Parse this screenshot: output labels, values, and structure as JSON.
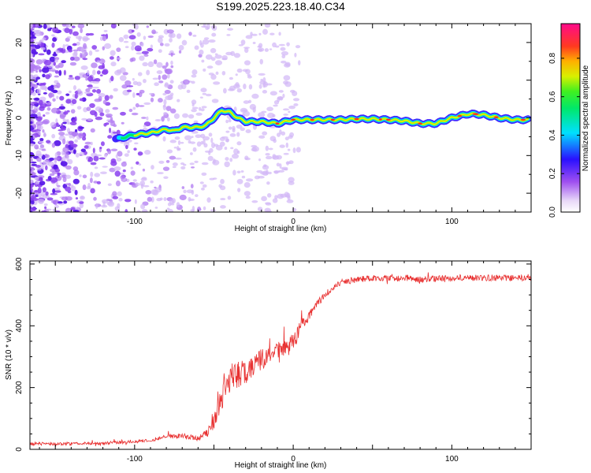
{
  "chart_data": [
    {
      "type": "heatmap",
      "title": "S199.2025.223.18.40.C34",
      "xlabel": "Height of straight line (km)",
      "ylabel": "Frequency (Hz)",
      "xlim": [
        -166,
        150
      ],
      "ylim": [
        -25,
        25
      ],
      "xticks": [
        -100,
        0,
        100
      ],
      "yticks": [
        -20,
        -10,
        0,
        10,
        20
      ],
      "ridge": {
        "x": [
          -110,
          -100,
          -90,
          -80,
          -75,
          -70,
          -60,
          -55,
          -50,
          -45,
          -40,
          -35,
          -30,
          -20,
          -10,
          0,
          10,
          20,
          30,
          40,
          50,
          60,
          70,
          80,
          90,
          100,
          105,
          110,
          115,
          120,
          130,
          140,
          148
        ],
        "freq": [
          -5.5,
          -4.5,
          -4,
          -3,
          -3.5,
          -2.5,
          -2.5,
          -2,
          0,
          2,
          1.5,
          0,
          -1,
          -1,
          -1.5,
          -0.5,
          -0.5,
          -0.5,
          -0.5,
          -0.3,
          -0.3,
          -0.5,
          -0.8,
          -1.5,
          -1.5,
          0,
          0.5,
          1,
          1,
          0.8,
          0,
          -0.5,
          -0.5
        ]
      },
      "colorbar": {
        "label": "Normalized spectral amplitude",
        "ticks": [
          "0.0",
          "0.2",
          "0.4",
          "0.6",
          "0.8"
        ],
        "range": [
          0,
          0.98
        ]
      }
    },
    {
      "type": "line",
      "xlabel": "Height of straight line (km)",
      "ylabel": "SNR (10 * v/v)",
      "xlim": [
        -166,
        150
      ],
      "ylim": [
        0,
        610
      ],
      "xticks": [
        -100,
        0,
        100
      ],
      "yticks": [
        0,
        200,
        400,
        600
      ],
      "color": "#e83030",
      "series": [
        {
          "name": "SNR",
          "x": [
            -166,
            -140,
            -120,
            -100,
            -90,
            -80,
            -70,
            -60,
            -55,
            -50,
            -45,
            -40,
            -35,
            -30,
            -25,
            -20,
            -15,
            -10,
            -5,
            0,
            5,
            10,
            15,
            20,
            25,
            30,
            40,
            50,
            60,
            80,
            100,
            120,
            150
          ],
          "y": [
            18,
            18,
            20,
            25,
            30,
            40,
            45,
            35,
            50,
            90,
            170,
            230,
            240,
            250,
            270,
            290,
            300,
            320,
            330,
            350,
            400,
            430,
            470,
            500,
            520,
            540,
            550,
            555,
            555,
            550,
            555,
            555,
            555
          ],
          "noise": [
            10,
            10,
            10,
            10,
            12,
            15,
            15,
            15,
            25,
            50,
            80,
            90,
            90,
            80,
            80,
            70,
            60,
            55,
            50,
            50,
            40,
            30,
            25,
            20,
            20,
            20,
            20,
            20,
            20,
            20,
            20,
            20,
            20
          ]
        }
      ]
    }
  ]
}
